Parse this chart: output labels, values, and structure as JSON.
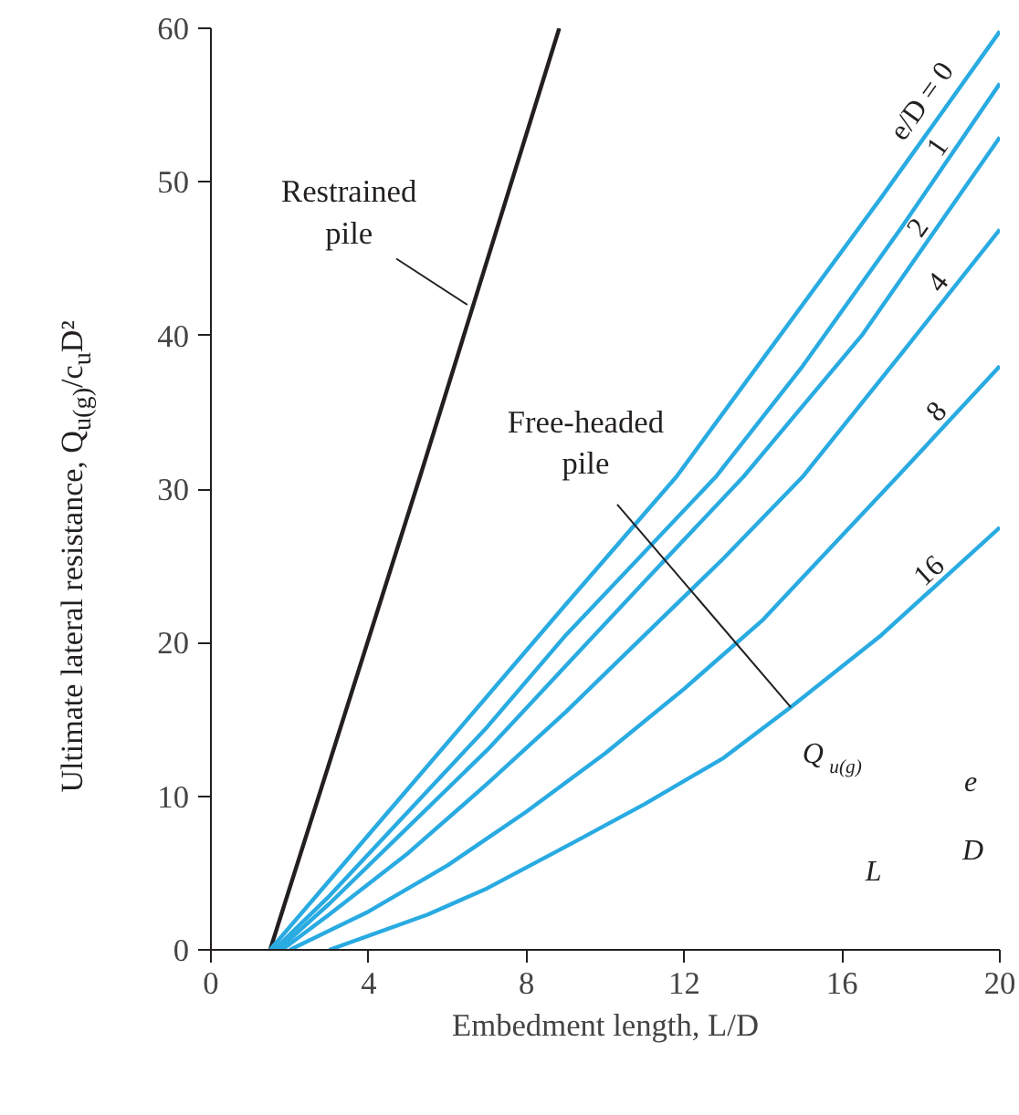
{
  "chart_data": {
    "type": "line",
    "xlabel": "Embedment length, L/D",
    "ylabel": "Ultimate lateral resistance, Q$_{u(g)}$/c$_{u}$D²",
    "xlim": [
      0,
      20
    ],
    "xticks": [
      0,
      4,
      8,
      12,
      16,
      20
    ],
    "ylim": [
      0,
      60
    ],
    "yticks": [
      0,
      10,
      20,
      30,
      40,
      50,
      60
    ],
    "grid": false,
    "legend": false,
    "marker": "none",
    "line_style": "solid",
    "series": [
      {
        "color": "#231f20",
        "x": [
          1.5,
          5.3,
          8.83
        ],
        "values": [
          0,
          30.8,
          60
        ]
      },
      {
        "name": "e/D = 0",
        "color": "#29abe2",
        "x": [
          1.5,
          3,
          5,
          7,
          9,
          11.8,
          14,
          17,
          20
        ],
        "values": [
          0,
          4.5,
          10.5,
          16.5,
          22.5,
          30.8,
          38.5,
          49,
          59.8
        ]
      },
      {
        "name": "1",
        "color": "#29abe2",
        "x": [
          1.6,
          3,
          5,
          7,
          9,
          12.8,
          15,
          17.5,
          20
        ],
        "values": [
          0,
          3.5,
          9,
          14.5,
          20.5,
          30.8,
          38,
          47,
          56.4
        ]
      },
      {
        "name": "2",
        "color": "#29abe2",
        "x": [
          1.7,
          3,
          5,
          7,
          9,
          11,
          13.5,
          16.5,
          20
        ],
        "values": [
          0,
          3,
          8,
          13,
          18.5,
          24,
          30.8,
          40,
          52.9
        ]
      },
      {
        "name": "4",
        "color": "#29abe2",
        "x": [
          1.8,
          3,
          5,
          7,
          9,
          11,
          13,
          15,
          17.5,
          20
        ],
        "values": [
          0,
          2.3,
          6.3,
          10.8,
          15.5,
          20.5,
          25.5,
          30.8,
          38.8,
          46.9
        ]
      },
      {
        "name": "8",
        "color": "#29abe2",
        "x": [
          2,
          4,
          6,
          8,
          10,
          12,
          14,
          17.4,
          20
        ],
        "values": [
          0,
          2.5,
          5.5,
          9,
          12.8,
          17,
          21.5,
          30.8,
          38
        ]
      },
      {
        "name": "16",
        "color": "#29abe2",
        "x": [
          3,
          5.5,
          7,
          9.2,
          11,
          13,
          14.7,
          17,
          20
        ],
        "values": [
          0,
          2.3,
          4,
          7,
          9.5,
          12.5,
          15.8,
          20.5,
          27.5
        ]
      }
    ],
    "annotations": [
      {
        "text": "Restrained pile",
        "x": 6.5,
        "y": 42
      },
      {
        "text": "Free-headed pile",
        "x": 14.7,
        "y": 15.8
      },
      "Q$_{u(g)}$",
      "e",
      "L",
      "D"
    ]
  }
}
